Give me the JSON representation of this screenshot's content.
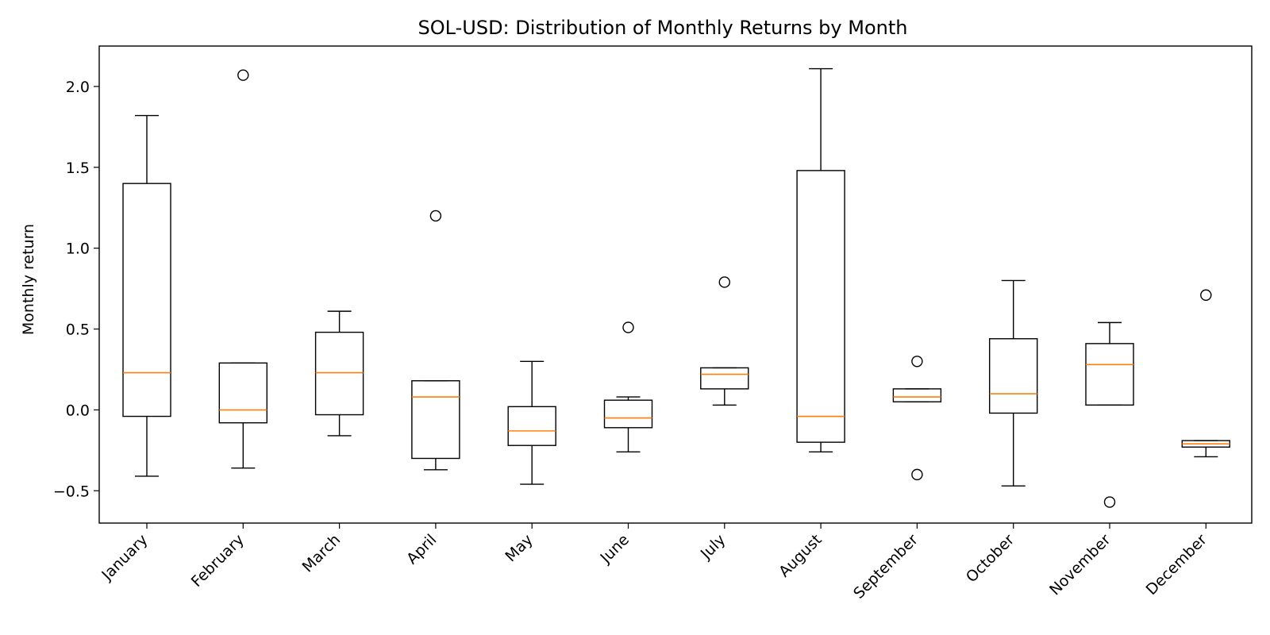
{
  "chart_data": {
    "type": "box",
    "title": "SOL-USD: Distribution of Monthly Returns by Month",
    "xlabel": "",
    "ylabel": "Monthly return",
    "ylim": [
      -0.7,
      2.25
    ],
    "yticks": [
      {
        "value": -0.5,
        "label": "−0.5"
      },
      {
        "value": 0.0,
        "label": "0.0"
      },
      {
        "value": 0.5,
        "label": "0.5"
      },
      {
        "value": 1.0,
        "label": "1.0"
      },
      {
        "value": 1.5,
        "label": "1.5"
      },
      {
        "value": 2.0,
        "label": "2.0"
      }
    ],
    "categories": [
      "January",
      "February",
      "March",
      "April",
      "May",
      "June",
      "July",
      "August",
      "September",
      "October",
      "November",
      "December"
    ],
    "boxes": [
      {
        "category": "January",
        "whisker_low": -0.41,
        "q1": -0.04,
        "median": 0.23,
        "q3": 1.4,
        "whisker_high": 1.82,
        "outliers": []
      },
      {
        "category": "February",
        "whisker_low": -0.36,
        "q1": -0.08,
        "median": 0.0,
        "q3": 0.29,
        "whisker_high": 0.29,
        "outliers": [
          2.07
        ]
      },
      {
        "category": "March",
        "whisker_low": -0.16,
        "q1": -0.03,
        "median": 0.23,
        "q3": 0.48,
        "whisker_high": 0.61,
        "outliers": []
      },
      {
        "category": "April",
        "whisker_low": -0.37,
        "q1": -0.3,
        "median": 0.08,
        "q3": 0.18,
        "whisker_high": 0.18,
        "outliers": [
          1.2
        ]
      },
      {
        "category": "May",
        "whisker_low": -0.46,
        "q1": -0.22,
        "median": -0.13,
        "q3": 0.02,
        "whisker_high": 0.3,
        "outliers": []
      },
      {
        "category": "June",
        "whisker_low": -0.26,
        "q1": -0.11,
        "median": -0.05,
        "q3": 0.06,
        "whisker_high": 0.08,
        "outliers": [
          0.51
        ]
      },
      {
        "category": "July",
        "whisker_low": 0.03,
        "q1": 0.13,
        "median": 0.22,
        "q3": 0.26,
        "whisker_high": 0.26,
        "outliers": [
          0.79
        ]
      },
      {
        "category": "August",
        "whisker_low": -0.26,
        "q1": -0.2,
        "median": -0.04,
        "q3": 1.48,
        "whisker_high": 2.11,
        "outliers": []
      },
      {
        "category": "September",
        "whisker_low": 0.05,
        "q1": 0.05,
        "median": 0.08,
        "q3": 0.13,
        "whisker_high": 0.13,
        "outliers": [
          0.3,
          -0.4
        ]
      },
      {
        "category": "October",
        "whisker_low": -0.47,
        "q1": -0.02,
        "median": 0.1,
        "q3": 0.44,
        "whisker_high": 0.8,
        "outliers": []
      },
      {
        "category": "November",
        "whisker_low": 0.03,
        "q1": 0.03,
        "median": 0.28,
        "q3": 0.41,
        "whisker_high": 0.54,
        "outliers": [
          -0.57
        ]
      },
      {
        "category": "December",
        "whisker_low": -0.29,
        "q1": -0.23,
        "median": -0.21,
        "q3": -0.19,
        "whisker_high": -0.19,
        "outliers": [
          0.71
        ]
      }
    ],
    "grid": false,
    "colors": {
      "box": "#000000",
      "median": "#ff7f0e",
      "outlier": "#000000",
      "background": "#ffffff"
    }
  }
}
